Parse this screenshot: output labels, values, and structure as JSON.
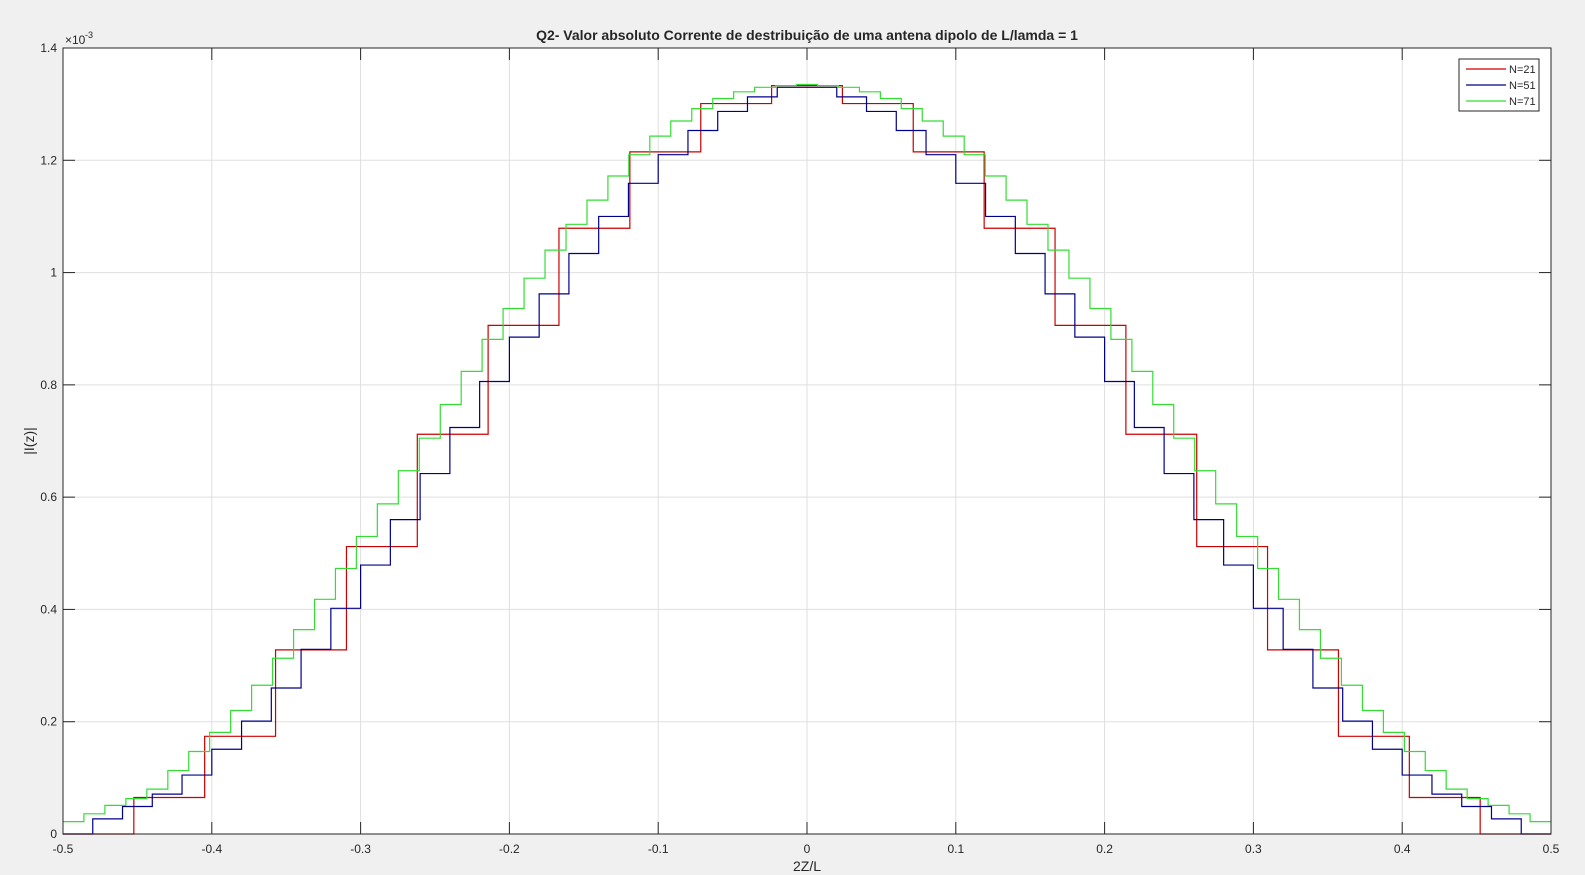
{
  "chart_data": {
    "type": "line",
    "title": "Q2- Valor absoluto Corrente de destribuição de uma antena dipolo de L/lamda = 1",
    "xlabel": "2Z/L",
    "ylabel": "|I(z)|",
    "xlim": [
      -0.5,
      0.5
    ],
    "ylim": [
      0,
      1.4
    ],
    "y_exponent_label": "×10",
    "y_exponent_power": "-3",
    "xticks": [
      "-0.5",
      "-0.4",
      "-0.3",
      "-0.2",
      "-0.1",
      "0",
      "0.1",
      "0.2",
      "0.3",
      "0.4",
      "0.5"
    ],
    "yticks": [
      "0",
      "0.2",
      "0.4",
      "0.6",
      "0.8",
      "1",
      "1.2",
      "1.4"
    ],
    "grid": true,
    "legend_position": "top-right",
    "series": [
      {
        "name": "N=21",
        "color": "#cc0000",
        "step": "center",
        "x": [
          -0.4762,
          -0.4286,
          -0.381,
          -0.3333,
          -0.2857,
          -0.2381,
          -0.1905,
          -0.1429,
          -0.0952,
          -0.0476,
          0,
          0.0476,
          0.0952,
          0.1429,
          0.1905,
          0.2381,
          0.2857,
          0.3333,
          0.381,
          0.4286,
          0.4762
        ],
        "y": [
          0.0,
          0.065,
          0.174,
          0.328,
          0.512,
          0.712,
          0.906,
          1.079,
          1.215,
          1.301,
          1.333,
          1.301,
          1.215,
          1.079,
          0.906,
          0.712,
          0.512,
          0.328,
          0.174,
          0.065,
          0.0
        ]
      },
      {
        "name": "N=51",
        "color": "#00008b",
        "step": "center",
        "x": [
          -0.49,
          -0.47,
          -0.45,
          -0.43,
          -0.41,
          -0.39,
          -0.37,
          -0.35,
          -0.33,
          -0.31,
          -0.29,
          -0.27,
          -0.25,
          -0.23,
          -0.21,
          -0.19,
          -0.17,
          -0.15,
          -0.13,
          -0.11,
          -0.09,
          -0.07,
          -0.05,
          -0.03,
          -0.01,
          0.01,
          0.03,
          0.05,
          0.07,
          0.09,
          0.11,
          0.13,
          0.15,
          0.17,
          0.19,
          0.21,
          0.23,
          0.25,
          0.27,
          0.29,
          0.31,
          0.33,
          0.35,
          0.37,
          0.39,
          0.41,
          0.43,
          0.45,
          0.47,
          0.49
        ],
        "y": [
          0.0,
          0.027,
          0.049,
          0.071,
          0.105,
          0.151,
          0.201,
          0.26,
          0.329,
          0.402,
          0.479,
          0.56,
          0.642,
          0.724,
          0.806,
          0.885,
          0.962,
          1.034,
          1.1,
          1.159,
          1.21,
          1.253,
          1.287,
          1.313,
          1.33,
          1.33,
          1.313,
          1.287,
          1.253,
          1.21,
          1.159,
          1.1,
          1.034,
          0.962,
          0.885,
          0.806,
          0.724,
          0.642,
          0.56,
          0.479,
          0.402,
          0.329,
          0.26,
          0.201,
          0.151,
          0.105,
          0.071,
          0.049,
          0.027,
          0.0
        ]
      },
      {
        "name": "N=71",
        "color": "#33dd33",
        "step": "center",
        "x": [
          -0.493,
          -0.4789,
          -0.4648,
          -0.4507,
          -0.4366,
          -0.4225,
          -0.4085,
          -0.3944,
          -0.3803,
          -0.3662,
          -0.3521,
          -0.338,
          -0.3239,
          -0.3099,
          -0.2958,
          -0.2817,
          -0.2676,
          -0.2535,
          -0.2394,
          -0.2254,
          -0.2113,
          -0.1972,
          -0.1831,
          -0.169,
          -0.1549,
          -0.1408,
          -0.1268,
          -0.1127,
          -0.0986,
          -0.0845,
          -0.0704,
          -0.0563,
          -0.0423,
          -0.0282,
          -0.0141,
          0,
          0.0141,
          0.0282,
          0.0423,
          0.0563,
          0.0704,
          0.0845,
          0.0986,
          0.1127,
          0.1268,
          0.1408,
          0.1549,
          0.169,
          0.1831,
          0.1972,
          0.2113,
          0.2254,
          0.2394,
          0.2535,
          0.2676,
          0.2817,
          0.2958,
          0.3099,
          0.3239,
          0.338,
          0.3521,
          0.3662,
          0.3803,
          0.3944,
          0.4085,
          0.4225,
          0.4366,
          0.4507,
          0.4648,
          0.4789,
          0.493
        ],
        "y": [
          0.022,
          0.036,
          0.051,
          0.063,
          0.08,
          0.113,
          0.147,
          0.181,
          0.22,
          0.265,
          0.313,
          0.364,
          0.418,
          0.473,
          0.53,
          0.588,
          0.647,
          0.705,
          0.765,
          0.824,
          0.881,
          0.936,
          0.99,
          1.04,
          1.086,
          1.129,
          1.172,
          1.21,
          1.243,
          1.27,
          1.292,
          1.31,
          1.322,
          1.33,
          1.333,
          1.335,
          1.333,
          1.33,
          1.322,
          1.31,
          1.292,
          1.27,
          1.243,
          1.21,
          1.172,
          1.129,
          1.086,
          1.04,
          0.99,
          0.936,
          0.881,
          0.824,
          0.765,
          0.705,
          0.647,
          0.588,
          0.53,
          0.473,
          0.418,
          0.364,
          0.313,
          0.265,
          0.22,
          0.181,
          0.147,
          0.113,
          0.08,
          0.063,
          0.051,
          0.036,
          0.022
        ]
      }
    ]
  }
}
